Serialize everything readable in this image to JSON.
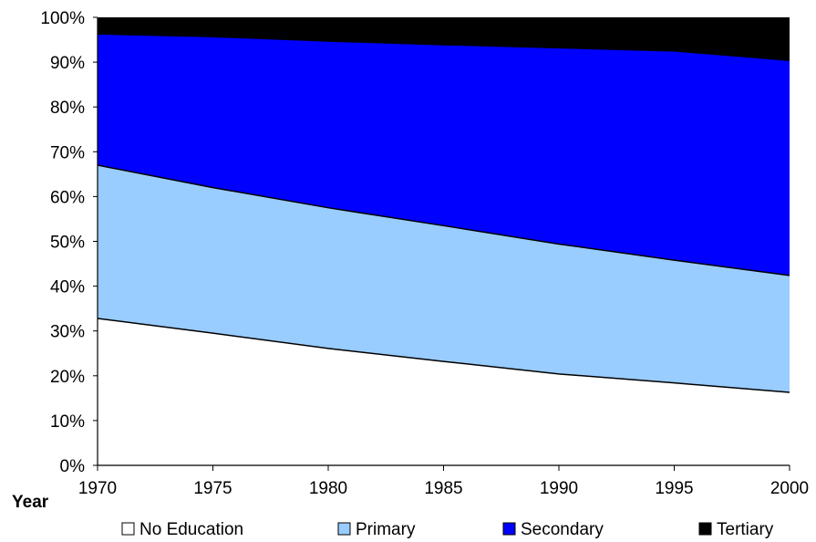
{
  "chart_data": {
    "type": "area",
    "stacking": "percent",
    "x": [
      1970,
      1975,
      1980,
      1985,
      1990,
      1995,
      2000
    ],
    "x_tick_labels": [
      "1970",
      "1975",
      "1980",
      "1985",
      "1990",
      "1995",
      "2000"
    ],
    "xlabel": "Year",
    "ylabel": "",
    "title": "",
    "ylim": [
      0,
      100
    ],
    "y_tick_labels": [
      "0%",
      "10%",
      "20%",
      "30%",
      "40%",
      "50%",
      "60%",
      "70%",
      "80%",
      "90%",
      "100%"
    ],
    "grid": false,
    "legend_position": "bottom",
    "series": [
      {
        "name": "No Education",
        "color": "#ffffff",
        "values": [
          32.8,
          29.5,
          26.1,
          23.2,
          20.4,
          18.4,
          16.3
        ]
      },
      {
        "name": "Primary",
        "color": "#99ccff",
        "values": [
          34.2,
          32.5,
          31.4,
          30.3,
          29.0,
          27.4,
          26.1
        ]
      },
      {
        "name": "Secondary",
        "color": "#0000ff",
        "values": [
          29.3,
          33.7,
          37.2,
          40.4,
          43.8,
          46.7,
          48.0
        ]
      },
      {
        "name": "Tertiary",
        "color": "#000000",
        "values": [
          3.7,
          4.3,
          5.3,
          6.1,
          6.8,
          7.5,
          9.6
        ]
      }
    ]
  }
}
